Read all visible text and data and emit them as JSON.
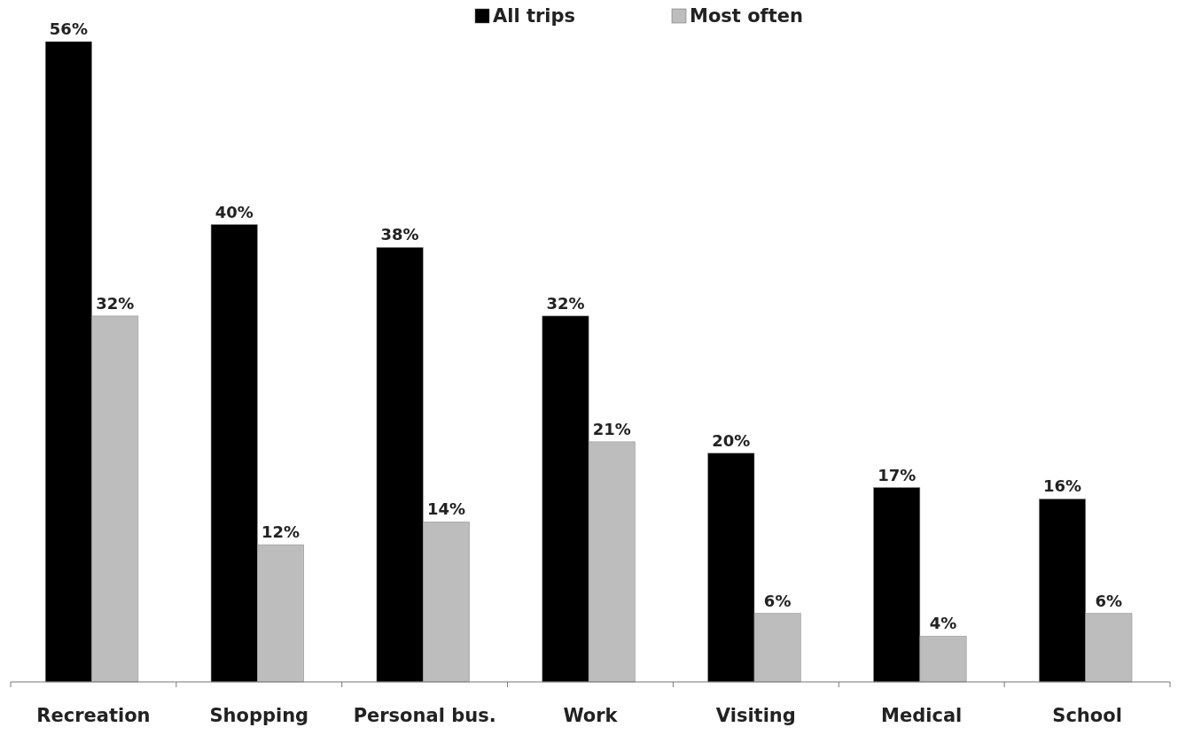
{
  "chart_data": {
    "type": "bar",
    "categories": [
      "Recreation",
      "Shopping",
      "Personal bus.",
      "Work",
      "Visiting",
      "Medical",
      "School"
    ],
    "series": [
      {
        "name": "All trips",
        "color": "#000000",
        "values": [
          56,
          40,
          38,
          32,
          20,
          17,
          16
        ],
        "value_labels": [
          "56%",
          "40%",
          "38%",
          "32%",
          "20%",
          "17%",
          "16%"
        ]
      },
      {
        "name": "Most often",
        "color": "#bdbdbd",
        "values": [
          32,
          12,
          14,
          21,
          6,
          4,
          6
        ],
        "value_labels": [
          "32%",
          "12%",
          "14%",
          "21%",
          "6%",
          "4%",
          "6%"
        ]
      }
    ],
    "legend": "top"
  }
}
